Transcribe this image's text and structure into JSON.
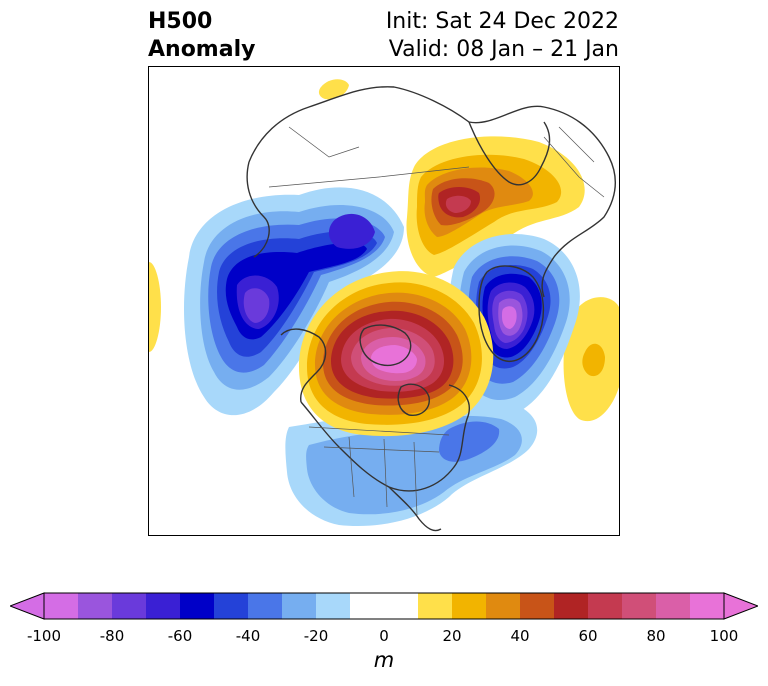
{
  "title": {
    "variable": "H500",
    "field": "Anomaly",
    "init": "Init: Sat 24 Dec 2022",
    "valid": "Valid: 08 Jan – 21 Jan"
  },
  "colorbar": {
    "units": "m",
    "ticks": [
      "-100",
      "-80",
      "-60",
      "-40",
      "-20",
      "0",
      "20",
      "40",
      "60",
      "80",
      "100"
    ],
    "levels": [
      -100,
      -90,
      -80,
      -70,
      -60,
      -50,
      -40,
      -30,
      -20,
      -10,
      10,
      20,
      30,
      40,
      50,
      60,
      70,
      80,
      90,
      100
    ],
    "colors": [
      "#d46de5",
      "#9a55dd",
      "#6a3adb",
      "#3a20d4",
      "#0000c8",
      "#2442d8",
      "#4a76e8",
      "#76aef0",
      "#a8d8fa",
      "#ffffff",
      "#ffe04a",
      "#f2b400",
      "#e08a10",
      "#c85418",
      "#b02424",
      "#c43a50",
      "#d04f78",
      "#da5fa8",
      "#e872d8"
    ],
    "extend": "both"
  },
  "map": {
    "projection": "north-polar-stereographic",
    "features": [
      {
        "name": "ridge-alaska-pole",
        "sign": "positive",
        "peak_anomaly": 100
      },
      {
        "name": "trough-north-atlantic-greenland",
        "sign": "negative",
        "peak_anomaly": -100
      },
      {
        "name": "ridge-scandinavia-barents",
        "sign": "positive",
        "peak_anomaly": 60
      },
      {
        "name": "trough-siberia",
        "sign": "negative",
        "peak_anomaly": -90
      },
      {
        "name": "trough-east-asia",
        "sign": "negative",
        "peak_anomaly": -60
      },
      {
        "name": "trough-north-pacific-west-coast",
        "sign": "negative",
        "peak_anomaly": -40
      },
      {
        "name": "weak-ridge-europe",
        "sign": "positive",
        "peak_anomaly": 30
      }
    ]
  }
}
